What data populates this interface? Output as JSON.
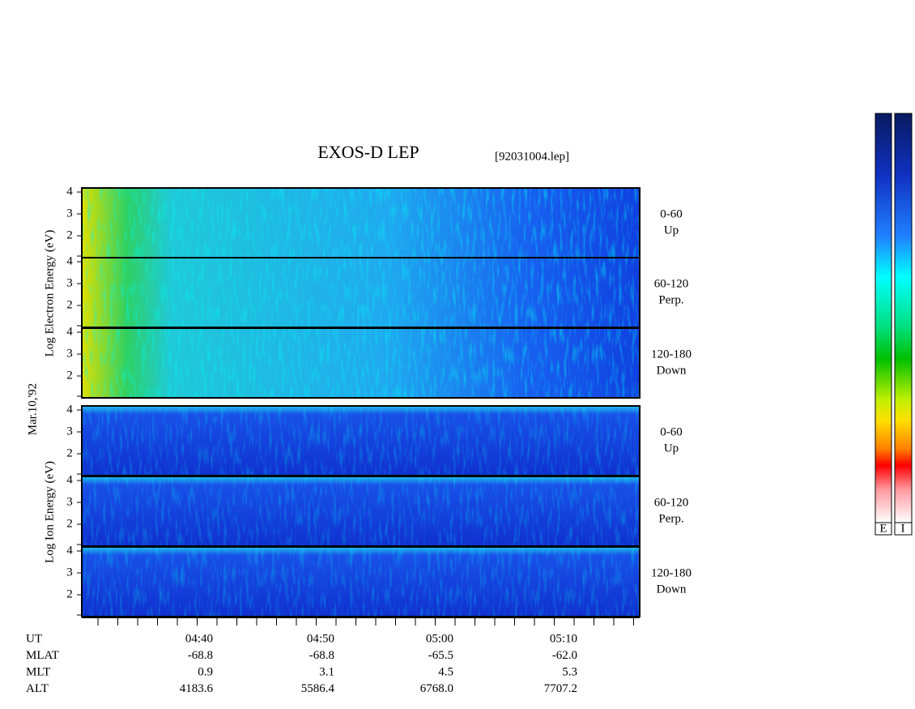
{
  "title": "EXOS-D LEP",
  "file": "[92031004.lep]",
  "date_label": "Mar.10,'92",
  "electron_axis_label": "Log  Electron  Energy (eV)",
  "ion_axis_label": "Log  Ion  Energy (eV)",
  "panels": [
    {
      "yticks": [
        "4",
        "3",
        "2"
      ],
      "pitch": "0-60",
      "direction": "Up"
    },
    {
      "yticks": [
        "4",
        "3",
        "2"
      ],
      "pitch": "60-120",
      "direction": "Perp."
    },
    {
      "yticks": [
        "4",
        "3",
        "2"
      ],
      "pitch": "120-180",
      "direction": "Down"
    },
    {
      "yticks": [
        "4",
        "3",
        "2"
      ],
      "pitch": "0-60",
      "direction": "Up"
    },
    {
      "yticks": [
        "4",
        "3",
        "2"
      ],
      "pitch": "60-120",
      "direction": "Perp."
    },
    {
      "yticks": [
        "4",
        "3",
        "2"
      ],
      "pitch": "120-180",
      "direction": "Down"
    }
  ],
  "time_axis": [
    {
      "name": "UT",
      "values": [
        "04:40",
        "04:50",
        "05:00",
        "05:10"
      ]
    },
    {
      "name": "MLAT",
      "values": [
        "-68.8",
        "-68.8",
        "-65.5",
        "-62.0"
      ]
    },
    {
      "name": "MLT",
      "values": [
        "0.9",
        "3.1",
        "4.5",
        "5.3"
      ]
    },
    {
      "name": "ALT",
      "values": [
        "4183.6",
        "5586.4",
        "6768.0",
        "7707.2"
      ]
    }
  ],
  "colorbar_labels": [
    "E",
    "I"
  ]
}
